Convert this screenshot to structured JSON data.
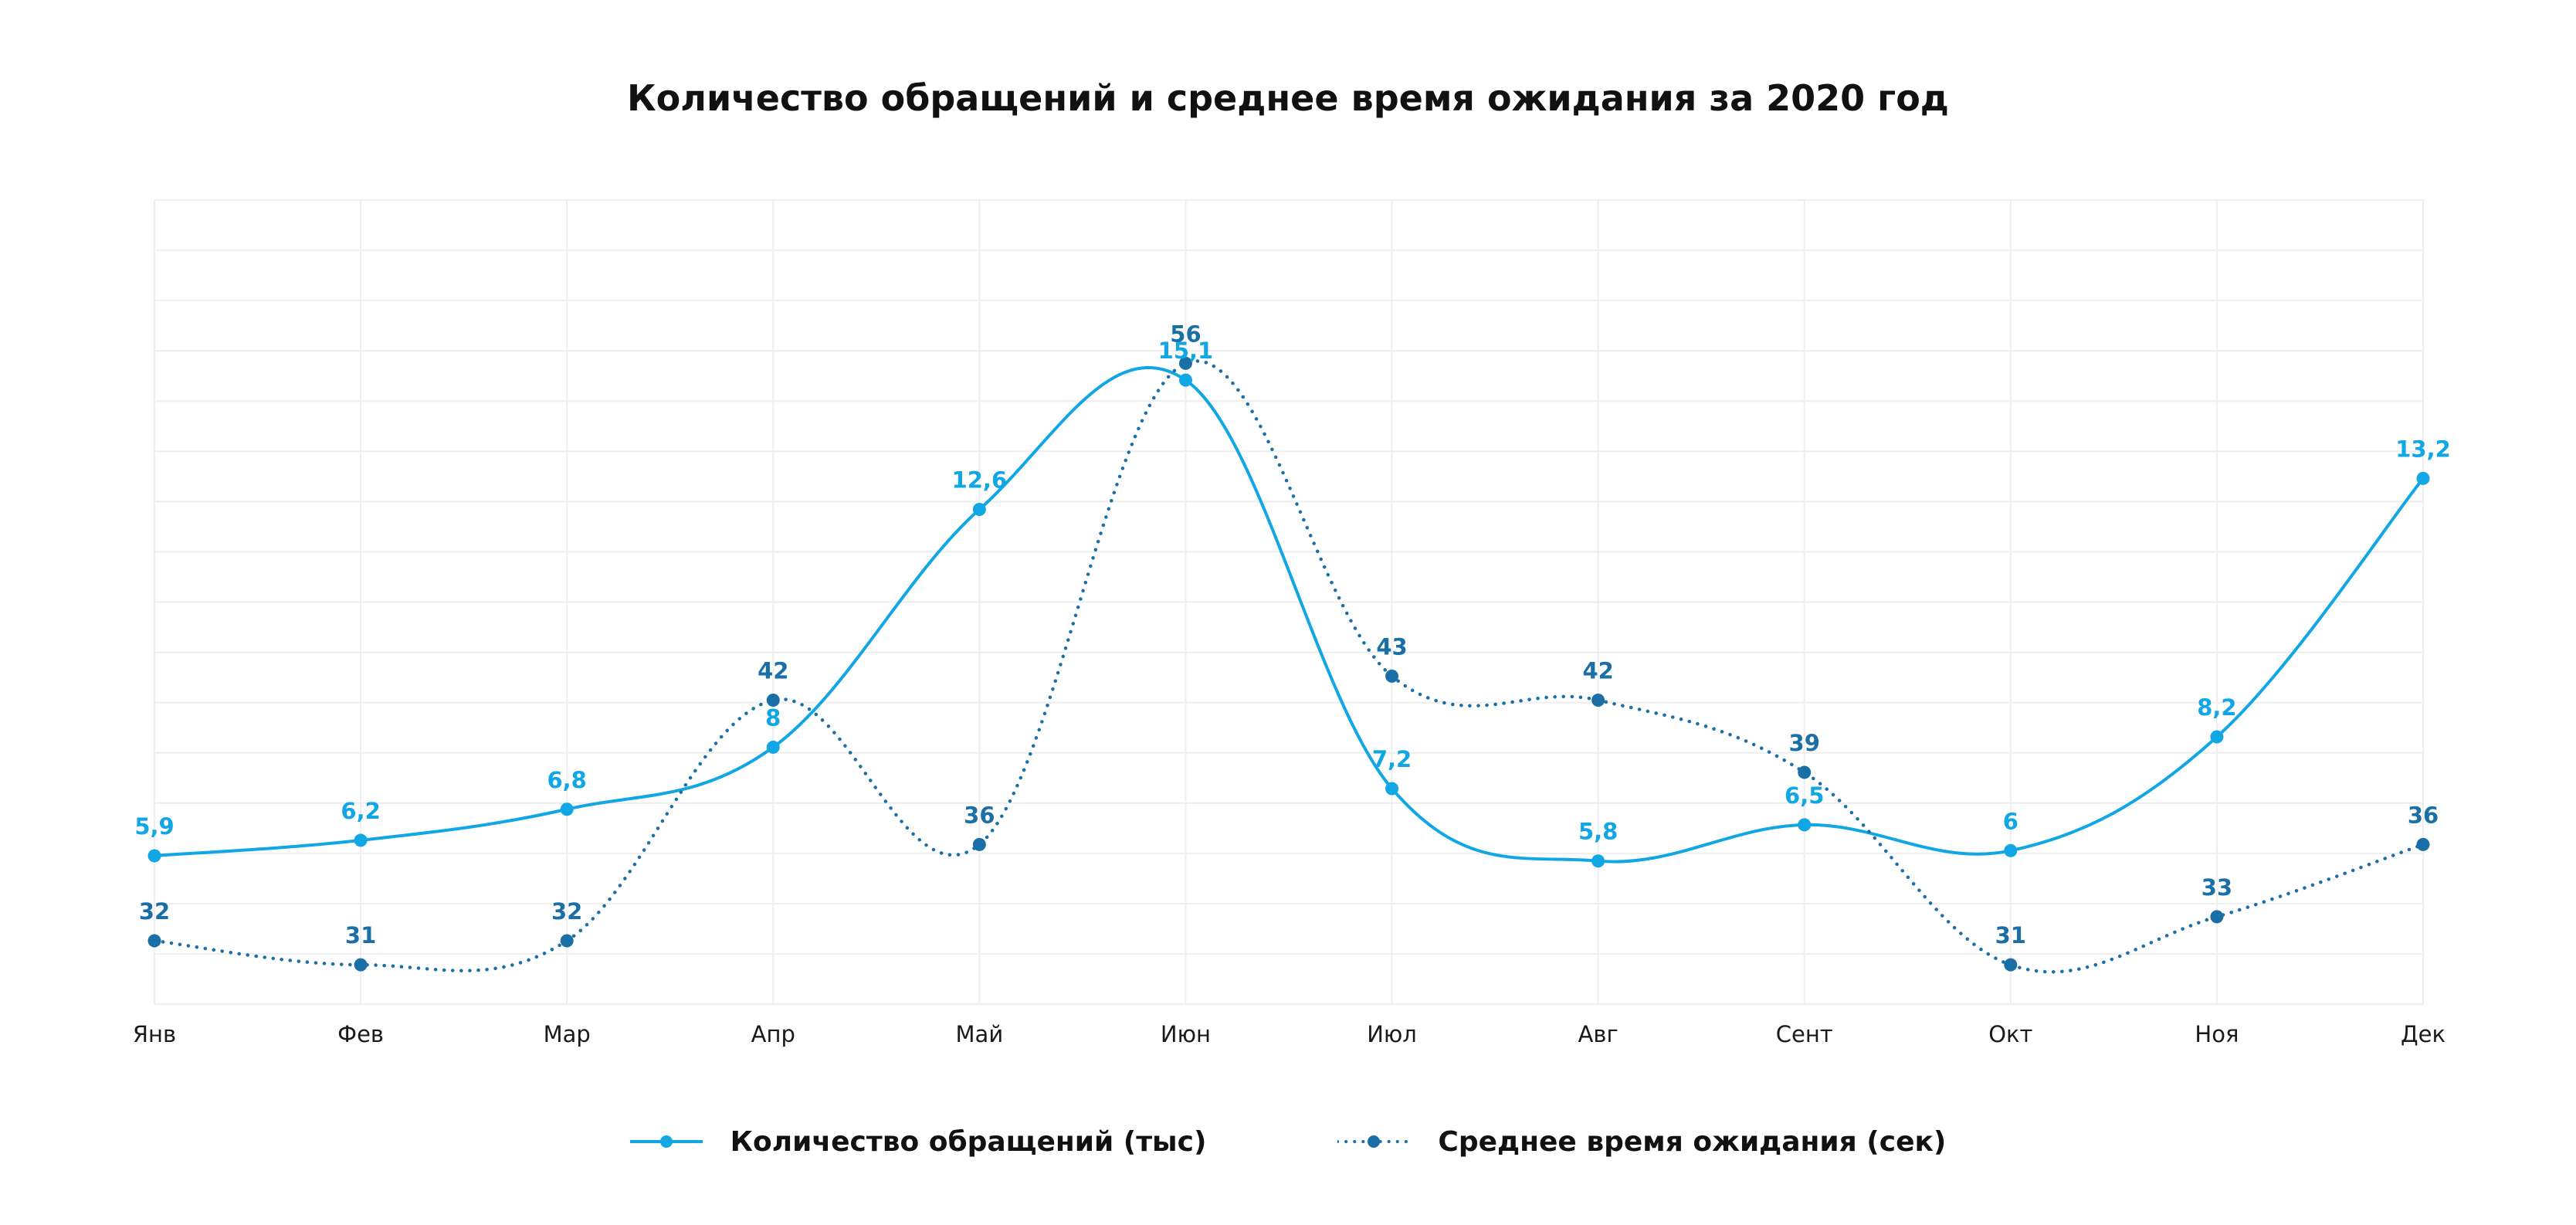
{
  "chart_data": {
    "type": "line",
    "title": "Количество обращений и среднее время ожидания за 2020 год",
    "categories": [
      "Янв",
      "Фев",
      "Мар",
      "Апр",
      "Май",
      "Июн",
      "Июл",
      "Авг",
      "Сент",
      "Окт",
      "Ноя",
      "Дек"
    ],
    "series": [
      {
        "name": "Количество обращений (тыс)",
        "values": [
          5.9,
          6.2,
          6.8,
          8,
          12.6,
          15.1,
          7.2,
          5.8,
          6.5,
          6,
          8.2,
          13.2
        ],
        "labels": [
          "5,9",
          "6,2",
          "6,8",
          "8",
          "12,6",
          "15,1",
          "7,2",
          "5,8",
          "6,5",
          "6",
          "8,2",
          "13,2"
        ],
        "color": "#11a6e4",
        "style": "solid"
      },
      {
        "name": "Среднее время ожидания (сек)",
        "values": [
          32,
          31,
          32,
          42,
          36,
          56,
          43,
          42,
          39,
          31,
          33,
          36
        ],
        "labels": [
          "32",
          "31",
          "32",
          "42",
          "36",
          "56",
          "43",
          "42",
          "39",
          "31",
          "33",
          "36"
        ],
        "color": "#1a6fa6",
        "style": "dotted"
      }
    ],
    "grid": true,
    "legend": "bottom-center",
    "xlabel": "",
    "ylabel": ""
  }
}
